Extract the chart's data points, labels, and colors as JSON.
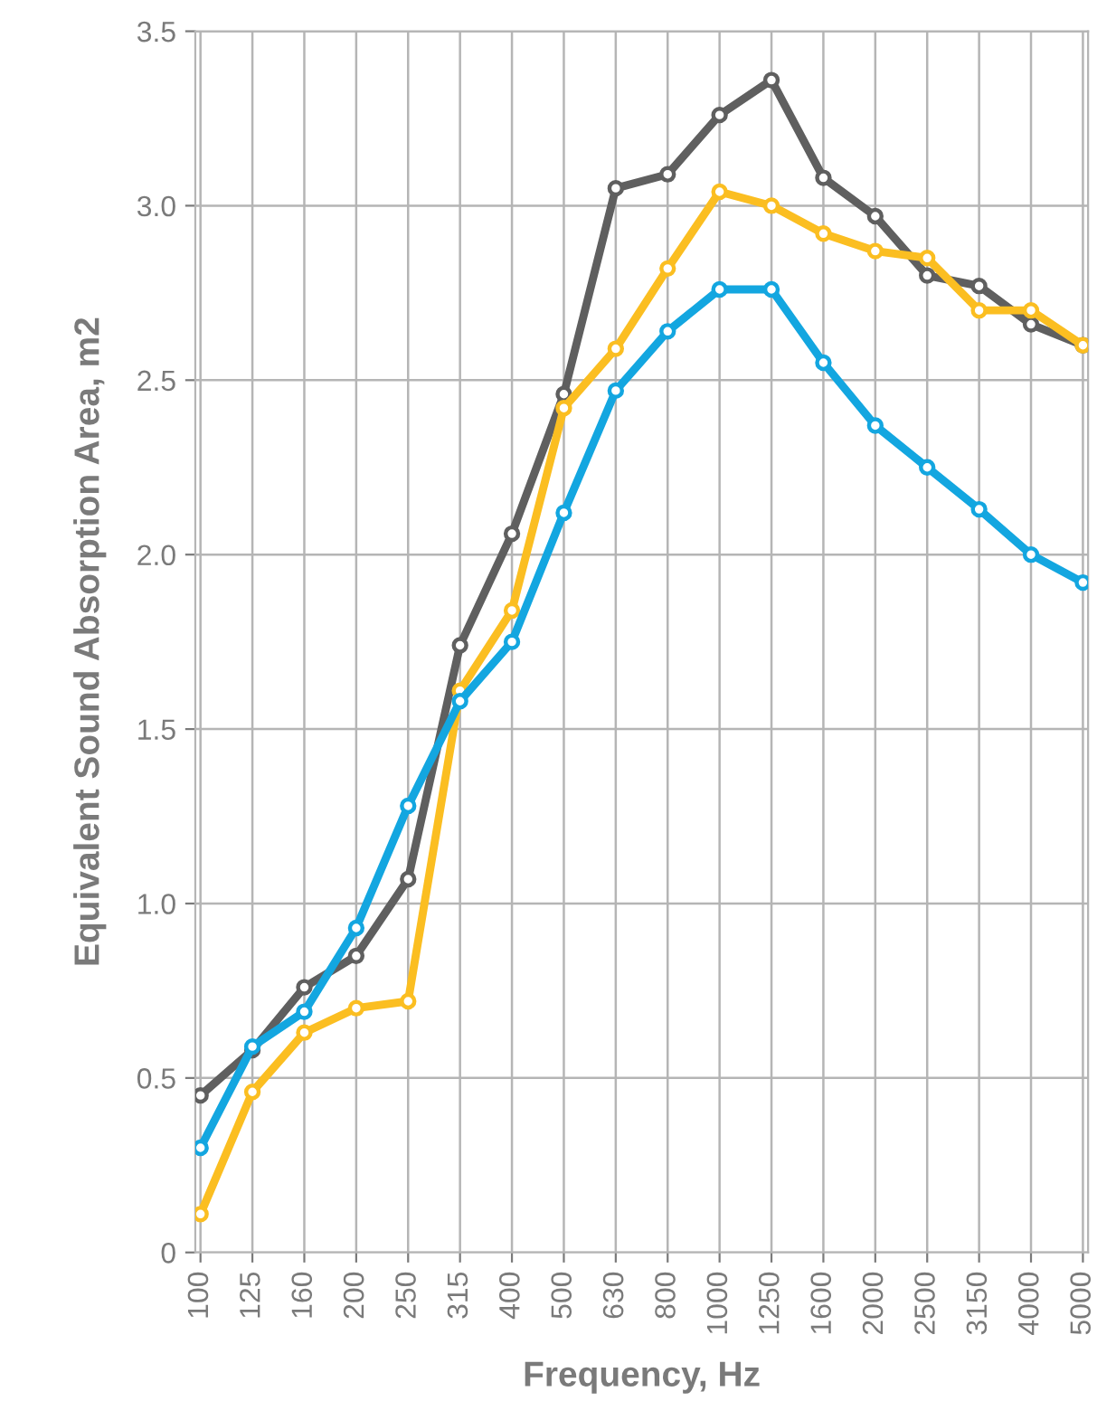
{
  "chart_data": {
    "type": "line",
    "xlabel": "Frequency, Hz",
    "ylabel": "Equivalent Sound Absorption Area, m2",
    "categories": [
      "100",
      "125",
      "160",
      "200",
      "250",
      "315",
      "400",
      "500",
      "630",
      "800",
      "1000",
      "1250",
      "1600",
      "2000",
      "2500",
      "3150",
      "4000",
      "5000"
    ],
    "series": [
      {
        "color": "#5f5f5f",
        "values": [
          0.45,
          0.58,
          0.76,
          0.85,
          1.07,
          1.74,
          2.06,
          2.46,
          3.05,
          3.09,
          3.26,
          3.36,
          3.08,
          2.97,
          2.8,
          2.77,
          2.66,
          2.6
        ]
      },
      {
        "color": "#fbbe21",
        "values": [
          0.11,
          0.46,
          0.63,
          0.7,
          0.72,
          1.61,
          1.84,
          2.42,
          2.59,
          2.82,
          3.04,
          3.0,
          2.92,
          2.87,
          2.85,
          2.7,
          2.7,
          2.6
        ]
      },
      {
        "color": "#13a6e0",
        "values": [
          0.3,
          0.59,
          0.69,
          0.93,
          1.28,
          1.58,
          1.75,
          2.12,
          2.47,
          2.64,
          2.76,
          2.76,
          2.55,
          2.37,
          2.25,
          2.13,
          2.0,
          1.92
        ]
      }
    ],
    "ylim": [
      0,
      3.5
    ],
    "yticks": [
      0,
      0.5,
      {
        "value": 1,
        "label": "1.0"
      },
      1.5,
      {
        "value": 2,
        "label": "2.0"
      },
      2.5,
      {
        "value": 3,
        "label": "3.0"
      },
      3.5
    ],
    "grid": true,
    "marker": "circle",
    "line_style": "solid"
  }
}
